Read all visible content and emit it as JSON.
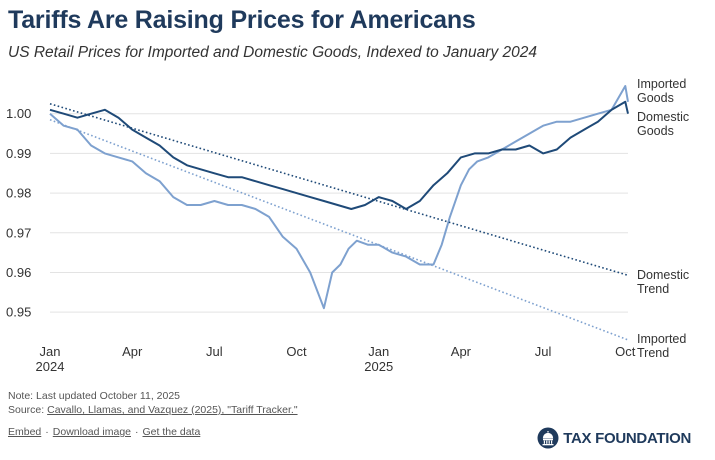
{
  "header": {
    "title": "Tariffs Are Raising Prices for Americans",
    "subtitle": "US Retail Prices for Imported and Domestic Goods, Indexed to January 2024"
  },
  "chart_data": {
    "type": "line",
    "title": "Tariffs Are Raising Prices for Americans",
    "subtitle": "US Retail Prices for Imported and Domestic Goods, Indexed to January 2024",
    "x_range": [
      "2024-01-01",
      "2025-10-11"
    ],
    "ylim": [
      0.945,
      1.008
    ],
    "y_ticks": [
      0.95,
      0.96,
      0.97,
      0.98,
      0.99,
      1.0
    ],
    "y_tick_labels": [
      "0.95",
      "0.96",
      "0.97",
      "0.98",
      "0.99",
      "1.00"
    ],
    "x_ticks": [
      {
        "month": 0,
        "label": "Jan",
        "sublabel": "2024"
      },
      {
        "month": 3,
        "label": "Apr",
        "sublabel": ""
      },
      {
        "month": 6,
        "label": "Jul",
        "sublabel": ""
      },
      {
        "month": 9,
        "label": "Oct",
        "sublabel": ""
      },
      {
        "month": 12,
        "label": "Jan",
        "sublabel": "2025"
      },
      {
        "month": 15,
        "label": "Apr",
        "sublabel": ""
      },
      {
        "month": 18,
        "label": "Jul",
        "sublabel": ""
      },
      {
        "month": 21,
        "label": "Oct",
        "sublabel": ""
      }
    ],
    "grid": true,
    "series": [
      {
        "name": "Imported Goods",
        "label_lines": [
          "Imported",
          "Goods"
        ],
        "color": "#7ea1cf",
        "style": "solid",
        "months": [
          0,
          0.5,
          1,
          1.5,
          2,
          2.5,
          3,
          3.5,
          4,
          4.5,
          5,
          5.5,
          6,
          6.5,
          7,
          7.5,
          8,
          8.5,
          9,
          9.5,
          10,
          10.3,
          10.6,
          10.9,
          11.2,
          11.6,
          12,
          12.5,
          13,
          13.5,
          14,
          14.3,
          14.6,
          15,
          15.3,
          15.6,
          16,
          16.5,
          17,
          17.5,
          18,
          18.5,
          19,
          19.5,
          20,
          20.5,
          21,
          21.1
        ],
        "values": [
          1.0,
          0.997,
          0.996,
          0.992,
          0.99,
          0.989,
          0.988,
          0.985,
          0.983,
          0.979,
          0.977,
          0.977,
          0.978,
          0.977,
          0.977,
          0.976,
          0.974,
          0.969,
          0.966,
          0.96,
          0.951,
          0.96,
          0.962,
          0.966,
          0.968,
          0.967,
          0.967,
          0.965,
          0.964,
          0.962,
          0.962,
          0.967,
          0.974,
          0.982,
          0.986,
          0.988,
          0.989,
          0.991,
          0.993,
          0.995,
          0.997,
          0.998,
          0.998,
          0.999,
          1.0,
          1.001,
          1.007,
          1.003
        ]
      },
      {
        "name": "Domestic Goods",
        "label_lines": [
          "Domestic",
          "Goods"
        ],
        "color": "#1f4a78",
        "style": "solid",
        "months": [
          0,
          0.5,
          1,
          1.5,
          2,
          2.5,
          3,
          3.5,
          4,
          4.5,
          5,
          5.5,
          6,
          6.5,
          7,
          7.5,
          8,
          8.5,
          9,
          9.5,
          10,
          10.5,
          11,
          11.5,
          12,
          12.5,
          13,
          13.5,
          14,
          14.5,
          15,
          15.5,
          16,
          16.5,
          17,
          17.5,
          18,
          18.5,
          19,
          19.5,
          20,
          20.5,
          21,
          21.1
        ],
        "values": [
          1.001,
          1.0,
          0.999,
          1.0,
          1.001,
          0.999,
          0.996,
          0.994,
          0.992,
          0.989,
          0.987,
          0.986,
          0.985,
          0.984,
          0.984,
          0.983,
          0.982,
          0.981,
          0.98,
          0.979,
          0.978,
          0.977,
          0.976,
          0.977,
          0.979,
          0.978,
          0.976,
          0.978,
          0.982,
          0.985,
          0.989,
          0.99,
          0.99,
          0.991,
          0.991,
          0.992,
          0.99,
          0.991,
          0.994,
          0.996,
          0.998,
          1.001,
          1.003,
          1.0
        ]
      },
      {
        "name": "Domestic Trend",
        "label_lines": [
          "Domestic",
          "Trend"
        ],
        "color": "#1f4a78",
        "style": "dotted",
        "months": [
          0,
          21.1
        ],
        "values": [
          1.0025,
          0.9593
        ]
      },
      {
        "name": "Imported Trend",
        "label_lines": [
          "Imported",
          "Trend"
        ],
        "color": "#7ea1cf",
        "style": "dotted",
        "months": [
          0,
          21.1
        ],
        "values": [
          0.9985,
          0.943
        ]
      }
    ]
  },
  "notes": {
    "line1": "Note: Last updated October 11, 2025",
    "source_prefix": "Source: ",
    "source_link": "Cavallo, Llamas, and Vazquez (2025), \"Tariff Tracker.\""
  },
  "footer": {
    "embed": "Embed",
    "download": "Download image",
    "data": "Get the data",
    "separator": "·",
    "logo_text": "TAX FOUNDATION"
  }
}
